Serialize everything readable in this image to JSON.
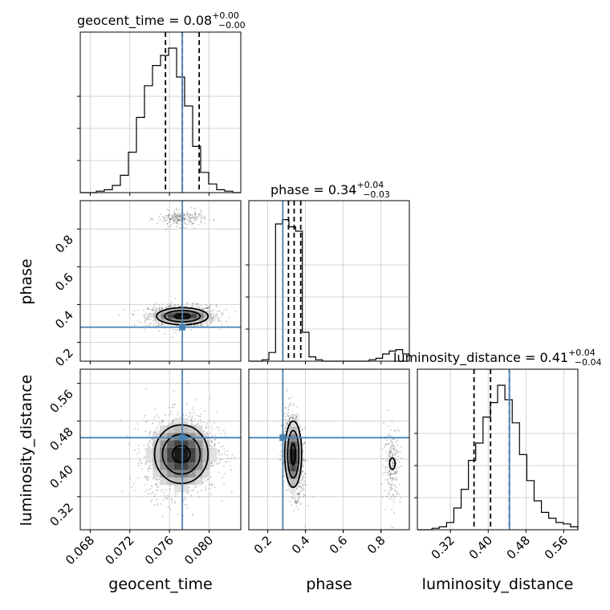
{
  "chart_data": {
    "type": "corner",
    "parameters": [
      {
        "name": "geocent_time",
        "xlabel": "geocent_time",
        "title": {
          "main": "geocent_time = 0.08",
          "sup": "+0.00",
          "sub": "−0.00"
        },
        "range": [
          0.067,
          0.0832
        ],
        "ticks": [
          0.068,
          0.072,
          0.076,
          0.08
        ],
        "tick_labels": [
          "0.068",
          "0.072",
          "0.076",
          "0.080"
        ],
        "quantiles": [
          0.0756,
          0.0773,
          0.079
        ],
        "truth": 0.0773
      },
      {
        "name": "phase",
        "xlabel": "phase",
        "ylabel": "phase",
        "title": {
          "main": "phase = 0.34",
          "sup": "+0.04",
          "sub": "−0.03"
        },
        "range": [
          0.1,
          0.95
        ],
        "ticks": [
          0.2,
          0.4,
          0.6,
          0.8
        ],
        "tick_labels": [
          "0.2",
          "0.4",
          "0.6",
          "0.8"
        ],
        "quantiles": [
          0.31,
          0.34,
          0.375
        ],
        "truth": 0.28
      },
      {
        "name": "luminosity_distance",
        "xlabel": "luminosity_distance",
        "ylabel": "luminosity_distance",
        "title": {
          "main": "luminosity_distance = 0.41",
          "sup": "+0.04",
          "sub": "−0.04"
        },
        "range": [
          0.25,
          0.59
        ],
        "ticks": [
          0.32,
          0.4,
          0.48,
          0.56
        ],
        "tick_labels": [
          "0.32",
          "0.40",
          "0.48",
          "0.56"
        ],
        "quantiles": [
          0.37,
          0.405,
          0.445
        ],
        "truth": 0.445
      }
    ],
    "histograms": {
      "geocent_time": [
        0,
        0,
        0.01,
        0.02,
        0.05,
        0.12,
        0.28,
        0.52,
        0.74,
        0.88,
        0.95,
        1.0,
        0.8,
        0.6,
        0.32,
        0.14,
        0.06,
        0.02,
        0.01,
        0
      ],
      "phase": [
        0,
        0,
        0.01,
        0.06,
        0.95,
        0.98,
        0.93,
        0.9,
        0.2,
        0.03,
        0.01,
        0,
        0,
        0,
        0,
        0,
        0,
        0,
        0.01,
        0.02,
        0.05,
        0.07,
        0.08,
        0.05
      ],
      "luminosity_distance": [
        0,
        0,
        0.01,
        0.02,
        0.05,
        0.15,
        0.28,
        0.48,
        0.6,
        0.78,
        0.88,
        1.0,
        0.9,
        0.74,
        0.52,
        0.34,
        0.2,
        0.12,
        0.08,
        0.05,
        0.04,
        0.02
      ]
    },
    "pairs": [
      {
        "x": "geocent_time",
        "y": "phase"
      },
      {
        "x": "geocent_time",
        "y": "luminosity_distance"
      },
      {
        "x": "phase",
        "y": "luminosity_distance"
      }
    ],
    "line_colors": {
      "truth": "#4682b4",
      "hist": "#000000",
      "quantile": "#000000",
      "grid": "#c8c8c8",
      "points": "#555555"
    },
    "grid": true
  }
}
